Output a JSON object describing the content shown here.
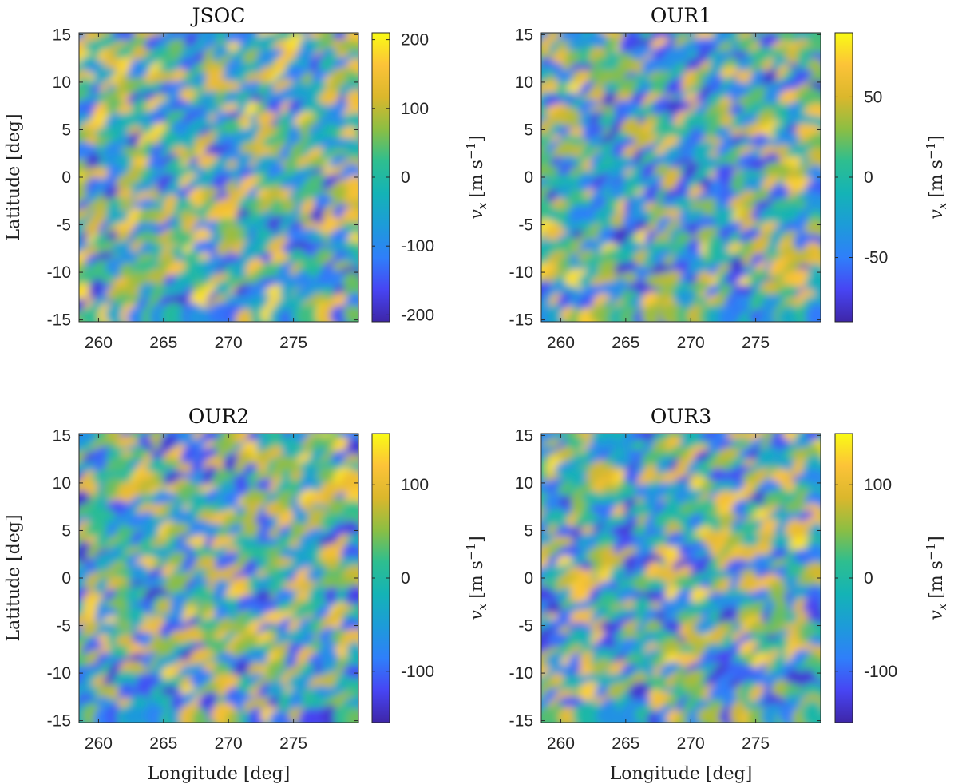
{
  "chart_data": [
    {
      "type": "heatmap",
      "title": "JSOC",
      "xlabel": "",
      "ylabel": "Latitude [deg]",
      "xlim": [
        258.5,
        280
      ],
      "ylim": [
        -15.2,
        15.2
      ],
      "xticks": [
        260,
        265,
        270,
        275
      ],
      "yticks": [
        15,
        10,
        5,
        0,
        -5,
        -10,
        -15
      ],
      "colorbar": {
        "label_var": "v",
        "label_sub": "x",
        "label_unit": "[m s",
        "label_exp": "−1",
        "label_close": "]",
        "range": [
          -210,
          210
        ],
        "ticks": [
          200,
          100,
          0,
          -100,
          -200
        ]
      },
      "seed": 11
    },
    {
      "type": "heatmap",
      "title": "OUR1",
      "xlabel": "",
      "ylabel": "",
      "xlim": [
        258.5,
        280
      ],
      "ylim": [
        -15.2,
        15.2
      ],
      "xticks": [
        260,
        265,
        270,
        275
      ],
      "yticks": [
        15,
        10,
        5,
        0,
        -5,
        -10,
        -15
      ],
      "colorbar": {
        "label_var": "v",
        "label_sub": "x",
        "label_unit": "[m s",
        "label_exp": "−1",
        "label_close": "]",
        "range": [
          -90,
          90
        ],
        "ticks": [
          50,
          0,
          -50
        ]
      },
      "seed": 23
    },
    {
      "type": "heatmap",
      "title": "OUR2",
      "xlabel": "Longitude [deg]",
      "ylabel": "Latitude [deg]",
      "xlim": [
        258.5,
        280
      ],
      "ylim": [
        -15.2,
        15.2
      ],
      "xticks": [
        260,
        265,
        270,
        275
      ],
      "yticks": [
        15,
        10,
        5,
        0,
        -5,
        -10,
        -15
      ],
      "colorbar": {
        "label_var": "v",
        "label_sub": "x",
        "label_unit": "[m s",
        "label_exp": "−1",
        "label_close": "]",
        "range": [
          -155,
          155
        ],
        "ticks": [
          100,
          0,
          -100
        ]
      },
      "seed": 37
    },
    {
      "type": "heatmap",
      "title": "OUR3",
      "xlabel": "Longitude [deg]",
      "ylabel": "",
      "xlim": [
        258.5,
        280
      ],
      "ylim": [
        -15.2,
        15.2
      ],
      "xticks": [
        260,
        265,
        270,
        275
      ],
      "yticks": [
        15,
        10,
        5,
        0,
        -5,
        -10,
        -15
      ],
      "colorbar": {
        "label_var": "v",
        "label_sub": "x",
        "label_unit": "[m s",
        "label_exp": "−1",
        "label_close": "]",
        "range": [
          -155,
          155
        ],
        "ticks": [
          100,
          0,
          -100
        ]
      },
      "seed": 41
    }
  ],
  "colormap": [
    "#3e26a8",
    "#4745f3",
    "#2f7ffa",
    "#1d9bd9",
    "#14b3b6",
    "#2ebe8f",
    "#8cbe43",
    "#dbb72c",
    "#fcc338",
    "#f9fb14"
  ]
}
